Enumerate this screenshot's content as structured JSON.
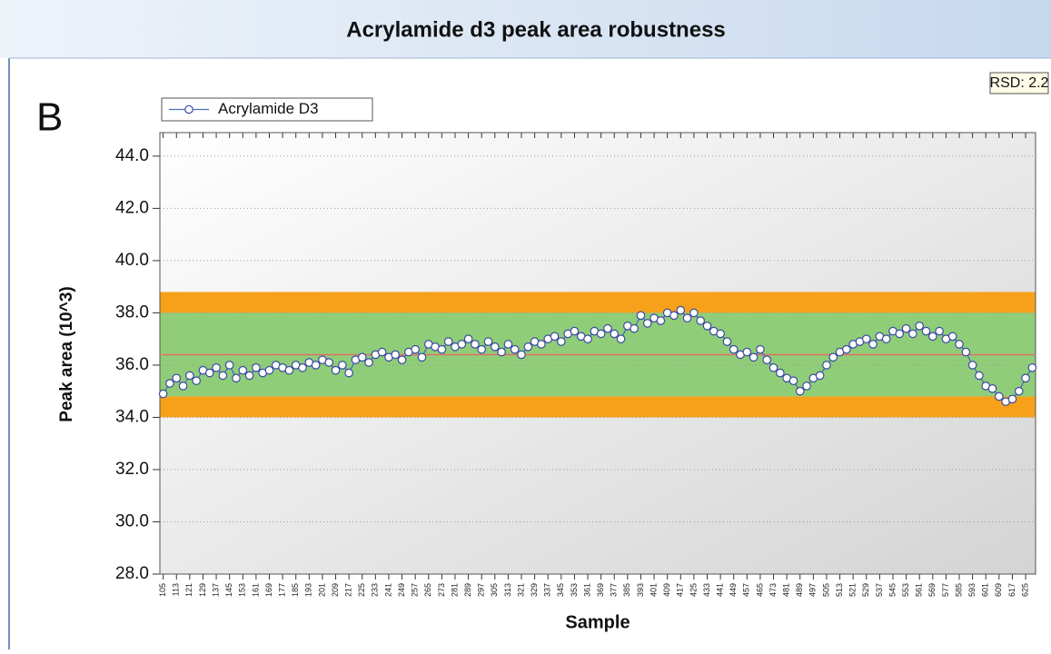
{
  "chart_data": {
    "type": "line",
    "title": "Acrylamide d3 peak area robustness",
    "panel_label": "B",
    "annotation": "RSD: 2.2",
    "y_label": "Peak area (10^3)",
    "x_label": "Sample",
    "x": [
      105,
      109,
      113,
      117,
      121,
      125,
      129,
      133,
      137,
      141,
      145,
      149,
      153,
      157,
      161,
      165,
      169,
      173,
      177,
      181,
      185,
      189,
      193,
      197,
      201,
      205,
      209,
      213,
      217,
      221,
      225,
      229,
      233,
      237,
      241,
      245,
      249,
      253,
      257,
      261,
      265,
      269,
      273,
      277,
      281,
      285,
      289,
      293,
      297,
      301,
      305,
      309,
      313,
      317,
      321,
      325,
      329,
      333,
      337,
      341,
      345,
      349,
      353,
      357,
      361,
      365,
      369,
      373,
      377,
      381,
      385,
      389,
      393,
      397,
      401,
      405,
      409,
      413,
      417,
      421,
      425,
      429,
      433,
      437,
      441,
      445,
      449,
      453,
      457,
      461,
      465,
      469,
      473,
      477,
      481,
      485,
      489,
      493,
      497,
      501,
      505,
      509,
      513,
      517,
      521,
      525,
      529,
      533,
      537,
      541,
      545,
      549,
      553,
      557,
      561,
      565,
      569,
      573,
      577,
      581,
      585,
      589,
      593,
      597,
      601,
      605,
      609,
      613,
      617,
      621,
      625,
      629
    ],
    "series": [
      {
        "name": "Acrylamide D3",
        "color": "#4a6fb5",
        "marker_color": "#3a4aa0",
        "values": [
          34.9,
          35.3,
          35.5,
          35.2,
          35.6,
          35.4,
          35.8,
          35.7,
          35.9,
          35.6,
          36.0,
          35.5,
          35.8,
          35.6,
          35.9,
          35.7,
          35.8,
          36.0,
          35.9,
          35.8,
          36.0,
          35.9,
          36.1,
          36.0,
          36.2,
          36.1,
          35.8,
          36.0,
          35.7,
          36.2,
          36.3,
          36.1,
          36.4,
          36.5,
          36.3,
          36.4,
          36.2,
          36.5,
          36.6,
          36.3,
          36.8,
          36.7,
          36.6,
          36.9,
          36.7,
          36.8,
          37.0,
          36.8,
          36.6,
          36.9,
          36.7,
          36.5,
          36.8,
          36.6,
          36.4,
          36.7,
          36.9,
          36.8,
          37.0,
          37.1,
          36.9,
          37.2,
          37.3,
          37.1,
          37.0,
          37.3,
          37.2,
          37.4,
          37.2,
          37.0,
          37.5,
          37.4,
          37.9,
          37.6,
          37.8,
          37.7,
          38.0,
          37.9,
          38.1,
          37.8,
          38.0,
          37.7,
          37.5,
          37.3,
          37.2,
          36.9,
          36.6,
          36.4,
          36.5,
          36.3,
          36.6,
          36.2,
          35.9,
          35.7,
          35.5,
          35.4,
          35.0,
          35.2,
          35.5,
          35.6,
          36.0,
          36.3,
          36.5,
          36.6,
          36.8,
          36.9,
          37.0,
          36.8,
          37.1,
          37.0,
          37.3,
          37.2,
          37.4,
          37.2,
          37.5,
          37.3,
          37.1,
          37.3,
          37.0,
          37.1,
          36.8,
          36.5,
          36.0,
          35.6,
          35.2,
          35.1,
          34.8,
          34.6,
          34.7,
          35.0,
          35.5,
          35.9
        ]
      }
    ],
    "bands": [
      {
        "from": 34.0,
        "to": 34.8,
        "color": "#f7a11a"
      },
      {
        "from": 34.8,
        "to": 38.0,
        "color": "#8fcd78"
      },
      {
        "from": 38.0,
        "to": 38.8,
        "color": "#f7a11a"
      }
    ],
    "mean_line": {
      "value": 36.4,
      "color": "#e0706a"
    },
    "xlim": [
      103,
      631
    ],
    "ylim": [
      28,
      44.9
    ],
    "yticks": [
      {
        "value": 28,
        "label": "28.0"
      },
      {
        "value": 30,
        "label": "30.0"
      },
      {
        "value": 32,
        "label": "32.0"
      },
      {
        "value": 34,
        "label": "34.0"
      },
      {
        "value": 36,
        "label": "36.0"
      },
      {
        "value": 38,
        "label": "38.0"
      },
      {
        "value": 40,
        "label": "40.0"
      },
      {
        "value": 42,
        "label": "42.0"
      },
      {
        "value": 44,
        "label": "44.0"
      }
    ],
    "xticks": [
      105,
      113,
      121,
      129,
      137,
      145,
      153,
      161,
      169,
      177,
      185,
      193,
      201,
      209,
      217,
      225,
      233,
      241,
      249,
      257,
      265,
      273,
      281,
      289,
      297,
      305,
      313,
      321,
      329,
      337,
      345,
      353,
      361,
      369,
      377,
      385,
      393,
      401,
      409,
      417,
      425,
      433,
      441,
      449,
      457,
      465,
      473,
      481,
      489,
      497,
      505,
      513,
      521,
      529,
      537,
      545,
      553,
      561,
      569,
      577,
      585,
      593,
      601,
      609,
      617,
      625
    ],
    "grid": true,
    "legend": "top-left"
  }
}
